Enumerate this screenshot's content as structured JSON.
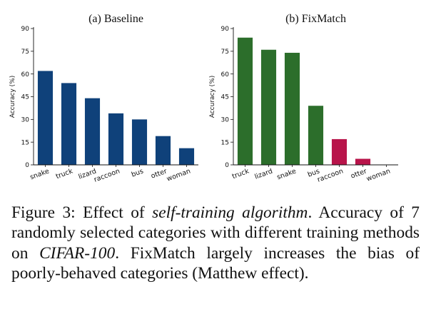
{
  "chart_data": [
    {
      "type": "bar",
      "title": "(a) Baseline",
      "ylabel": "Accuracy (%)",
      "ylim": [
        0,
        90
      ],
      "yticks": [
        0,
        15,
        30,
        45,
        60,
        75,
        90
      ],
      "categories": [
        "snake",
        "truck",
        "lizard",
        "raccoon",
        "bus",
        "otter",
        "woman"
      ],
      "values": [
        62,
        54,
        44,
        34,
        30,
        19,
        11
      ],
      "colors": [
        "#0f417a",
        "#0f417a",
        "#0f417a",
        "#0f417a",
        "#0f417a",
        "#0f417a",
        "#0f417a"
      ]
    },
    {
      "type": "bar",
      "title": "(b) FixMatch",
      "ylabel": "Accuracy (%)",
      "ylim": [
        0,
        90
      ],
      "yticks": [
        0,
        15,
        30,
        45,
        60,
        75,
        90
      ],
      "categories": [
        "truck",
        "lizard",
        "snake",
        "bus",
        "raccoon",
        "otter",
        "woman"
      ],
      "values": [
        84,
        76,
        74,
        39,
        17,
        4,
        0
      ],
      "colors": [
        "#2c6e2b",
        "#2c6e2b",
        "#2c6e2b",
        "#2c6e2b",
        "#b8144a",
        "#b8144a",
        "#b8144a"
      ]
    }
  ],
  "caption": {
    "prefix": "Figure 3: Effect of ",
    "emph1": "self-training algorithm",
    "mid": ". Accuracy of 7 randomly selected categories with different training methods on ",
    "emph2": "CIFAR-100",
    "suffix": ". FixMatch largely increases the bias of poorly-behaved categories (Matthew effect)."
  }
}
